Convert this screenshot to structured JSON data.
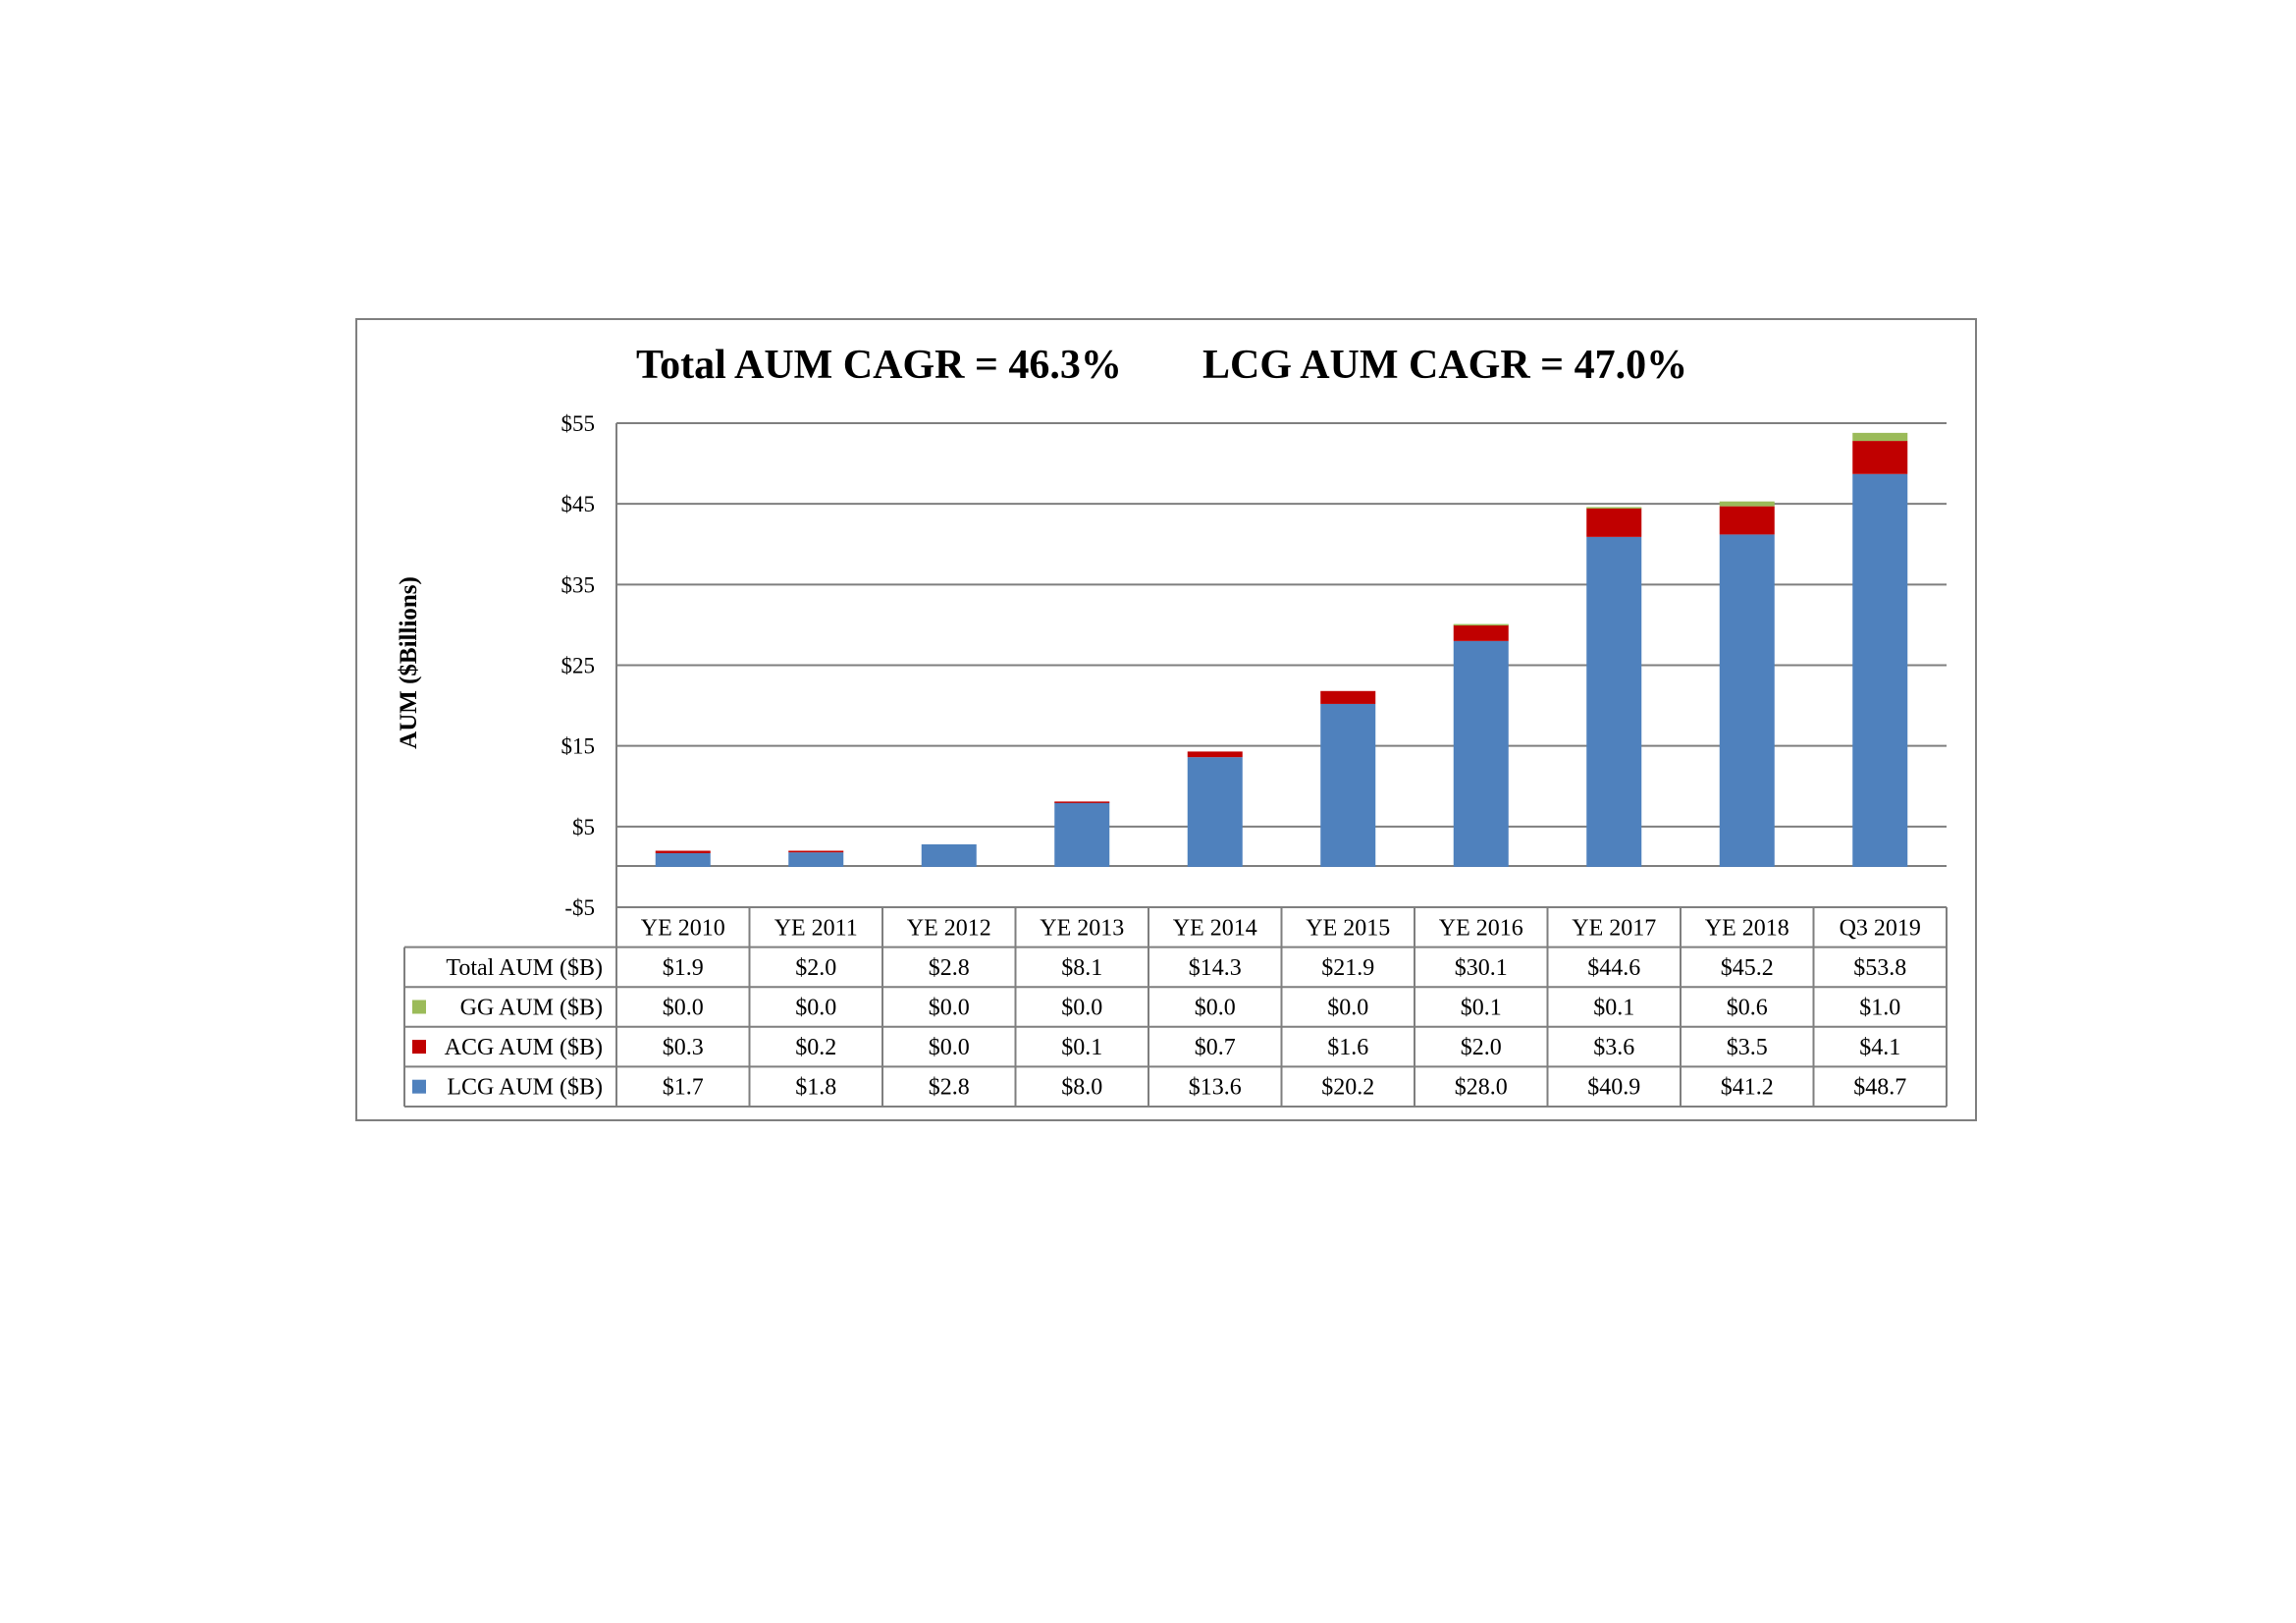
{
  "colors": {
    "lcg": "#4f81bd",
    "acg": "#c00000",
    "gg": "#9bbb59",
    "grid": "#7f7f7f",
    "frame": "#7f7f7f",
    "table_border": "#7f7f7f"
  },
  "chart_data": {
    "type": "bar",
    "stacked": true,
    "title_parts": [
      "Total AUM CAGR = 46.3%",
      "LCG AUM CAGR = 47.0%"
    ],
    "ylabel": "AUM ($Billions)",
    "ylim": [
      -5,
      55
    ],
    "yticks": [
      -5,
      5,
      15,
      25,
      35,
      45,
      55
    ],
    "ytick_labels": [
      "-$5",
      "$5",
      "$15",
      "$25",
      "$35",
      "$45",
      "$55"
    ],
    "grid": true,
    "legend": "data-table",
    "categories": [
      "YE 2010",
      "YE 2011",
      "YE 2012",
      "YE 2013",
      "YE 2014",
      "YE 2015",
      "YE 2016",
      "YE 2017",
      "YE 2018",
      "Q3 2019"
    ],
    "series": [
      {
        "key": "lcg",
        "name": "LCG AUM ($B)",
        "values": [
          1.7,
          1.8,
          2.8,
          8.0,
          13.6,
          20.2,
          28.0,
          40.9,
          41.2,
          48.7
        ]
      },
      {
        "key": "acg",
        "name": "ACG AUM ($B)",
        "values": [
          0.3,
          0.2,
          0.0,
          0.1,
          0.7,
          1.6,
          2.0,
          3.6,
          3.5,
          4.1
        ]
      },
      {
        "key": "gg",
        "name": "GG AUM ($B)",
        "values": [
          0.0,
          0.0,
          0.0,
          0.0,
          0.0,
          0.0,
          0.1,
          0.1,
          0.6,
          1.0
        ]
      }
    ],
    "table_rows": [
      {
        "label": "Total AUM ($B)",
        "key": "total",
        "cells": [
          "$1.9",
          "$2.0",
          "$2.8",
          "$8.1",
          "$14.3",
          "$21.9",
          "$30.1",
          "$44.6",
          "$45.2",
          "$53.8"
        ]
      },
      {
        "label": "GG AUM ($B)",
        "key": "gg",
        "cells": [
          "$0.0",
          "$0.0",
          "$0.0",
          "$0.0",
          "$0.0",
          "$0.0",
          "$0.1",
          "$0.1",
          "$0.6",
          "$1.0"
        ]
      },
      {
        "label": "ACG AUM ($B)",
        "key": "acg",
        "cells": [
          "$0.3",
          "$0.2",
          "$0.0",
          "$0.1",
          "$0.7",
          "$1.6",
          "$2.0",
          "$3.6",
          "$3.5",
          "$4.1"
        ]
      },
      {
        "label": "LCG AUM ($B)",
        "key": "lcg",
        "cells": [
          "$1.7",
          "$1.8",
          "$2.8",
          "$8.0",
          "$13.6",
          "$20.2",
          "$28.0",
          "$40.9",
          "$41.2",
          "$48.7"
        ]
      }
    ]
  }
}
